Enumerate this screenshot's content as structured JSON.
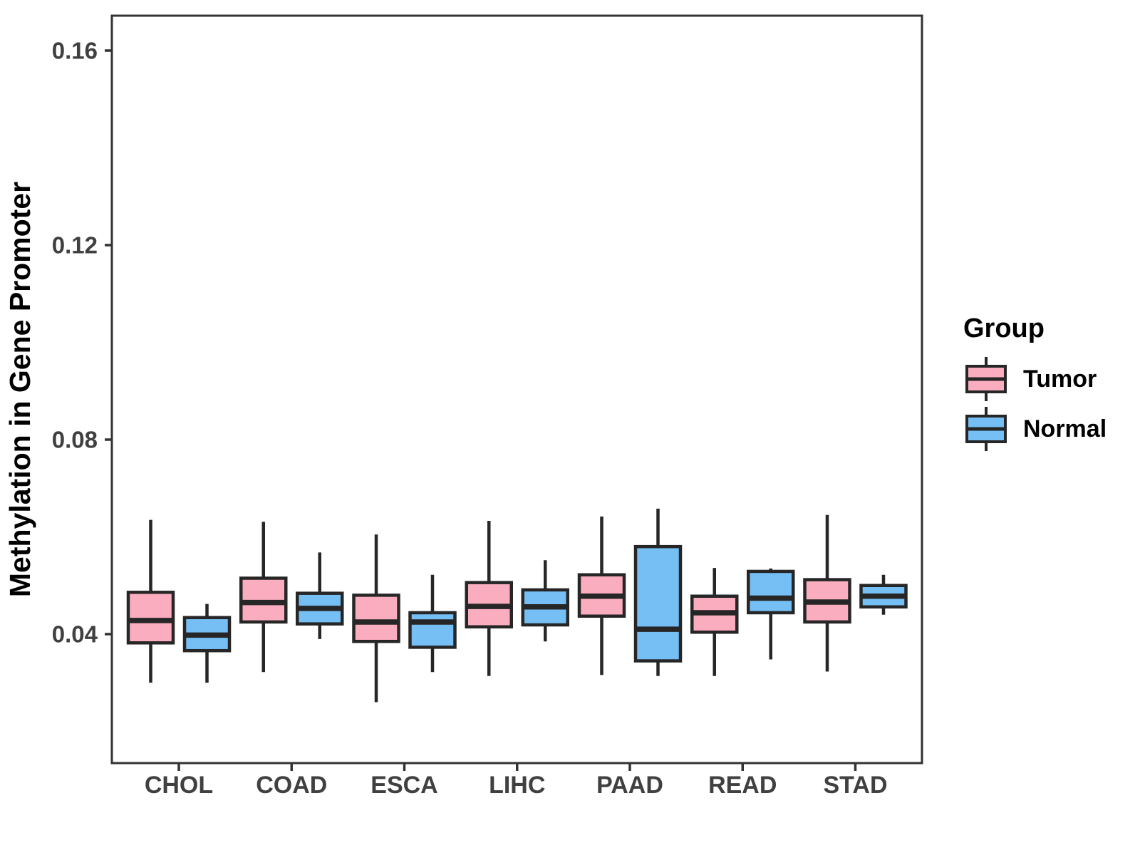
{
  "chart_data": {
    "type": "boxplot",
    "title": "",
    "xlabel": "",
    "ylabel": "Methylation in Gene Promoter",
    "categories": [
      "CHOL",
      "COAD",
      "ESCA",
      "LIHC",
      "PAAD",
      "READ",
      "STAD"
    ],
    "y_ticks": [
      0.04,
      0.08,
      0.12,
      0.16
    ],
    "y_tick_labels": [
      "0.04",
      "0.08",
      "0.12",
      "0.16"
    ],
    "ylim": [
      0.0135,
      0.168
    ],
    "grid": false,
    "legend": {
      "title": "Group",
      "position": "right",
      "entries": [
        {
          "label": "Tumor",
          "color": "#FBADC0"
        },
        {
          "label": "Normal",
          "color": "#75BFF4"
        }
      ]
    },
    "series": [
      {
        "name": "Tumor",
        "color": "#FBADC0",
        "boxes": [
          {
            "category": "CHOL",
            "low": 0.03,
            "q1": 0.0382,
            "median": 0.0428,
            "q3": 0.0486,
            "high": 0.0635
          },
          {
            "category": "COAD",
            "low": 0.0322,
            "q1": 0.0425,
            "median": 0.0465,
            "q3": 0.0515,
            "high": 0.0631
          },
          {
            "category": "ESCA",
            "low": 0.026,
            "q1": 0.0385,
            "median": 0.0425,
            "q3": 0.048,
            "high": 0.0605
          },
          {
            "category": "LIHC",
            "low": 0.0314,
            "q1": 0.0415,
            "median": 0.0457,
            "q3": 0.0506,
            "high": 0.0633
          },
          {
            "category": "PAAD",
            "low": 0.0316,
            "q1": 0.0437,
            "median": 0.0478,
            "q3": 0.0522,
            "high": 0.0642
          },
          {
            "category": "READ",
            "low": 0.0314,
            "q1": 0.0404,
            "median": 0.0444,
            "q3": 0.0478,
            "high": 0.0536
          },
          {
            "category": "STAD",
            "low": 0.0323,
            "q1": 0.0425,
            "median": 0.0466,
            "q3": 0.0512,
            "high": 0.0645
          }
        ]
      },
      {
        "name": "Normal",
        "color": "#75BFF4",
        "boxes": [
          {
            "category": "CHOL",
            "low": 0.03,
            "q1": 0.0366,
            "median": 0.0398,
            "q3": 0.0434,
            "high": 0.0462
          },
          {
            "category": "COAD",
            "low": 0.039,
            "q1": 0.0421,
            "median": 0.0453,
            "q3": 0.0484,
            "high": 0.0568
          },
          {
            "category": "ESCA",
            "low": 0.0322,
            "q1": 0.0373,
            "median": 0.0425,
            "q3": 0.0444,
            "high": 0.0522
          },
          {
            "category": "LIHC",
            "low": 0.0385,
            "q1": 0.0419,
            "median": 0.0456,
            "q3": 0.0491,
            "high": 0.0552
          },
          {
            "category": "PAAD",
            "low": 0.0314,
            "q1": 0.0345,
            "median": 0.041,
            "q3": 0.058,
            "high": 0.0658
          },
          {
            "category": "READ",
            "low": 0.0348,
            "q1": 0.0444,
            "median": 0.0474,
            "q3": 0.0529,
            "high": 0.0535
          },
          {
            "category": "STAD",
            "low": 0.044,
            "q1": 0.0456,
            "median": 0.0478,
            "q3": 0.05,
            "high": 0.0522
          }
        ]
      }
    ],
    "colors": {
      "box_stroke": "#262626",
      "panel_border": "#333333",
      "tick_mark": "#333333",
      "tick_label": "#404040",
      "axis_title": "#000000"
    }
  }
}
